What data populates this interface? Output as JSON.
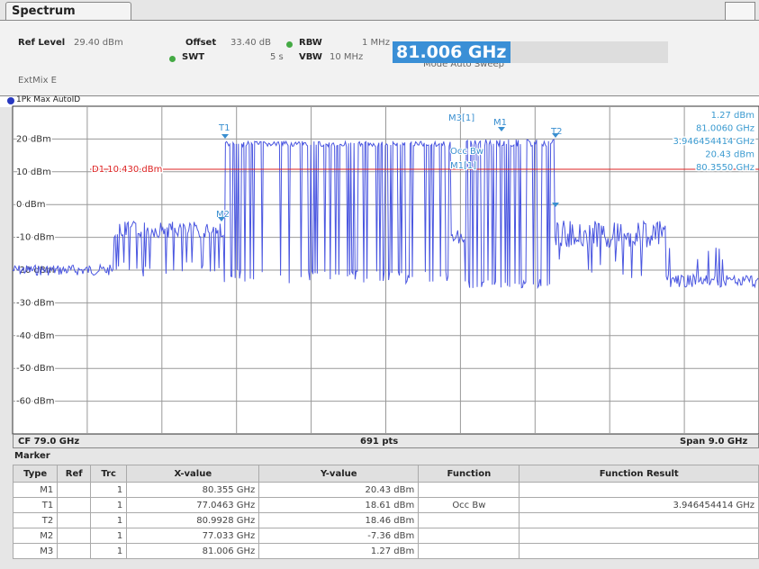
{
  "tab": "Spectrum",
  "header": {
    "ref_level_label": "Ref Level",
    "ref_level": "29.40 dBm",
    "offset_label": "Offset",
    "offset": "33.40 dB",
    "rbw_label": "RBW",
    "rbw": "1 MHz",
    "swt_label": "SWT",
    "swt": "5 s",
    "vbw_label": "VBW",
    "vbw": "10 MHz",
    "mode": "Mode Auto Sweep",
    "extmix": "ExtMix E",
    "frequency_entry": "81.006 GHz"
  },
  "trace_label": "1Pk Max AutoID",
  "y_axis_labels": [
    "20 dBm",
    "10 dBm",
    "0 dBm",
    "-10 dBm",
    "-20 dBm",
    "-30 dBm",
    "-40 dBm",
    "-50 dBm",
    "-60 dBm"
  ],
  "display_line": "D1 10.430 dBm",
  "markers": [
    "T1",
    "M2",
    "M3[1]",
    "M1",
    "T2",
    "Occ Bw",
    "M1[1]"
  ],
  "readout": [
    "1.27 dBm",
    "81.0060 GHz",
    "3.946454414 GHz",
    "20.43 dBm",
    "80.3550 GHz"
  ],
  "footer": {
    "center": "CF 79.0 GHz",
    "points": "691 pts",
    "span": "Span 9.0 GHz"
  },
  "marker_table": {
    "title": "Marker",
    "columns": [
      "Type",
      "Ref",
      "Trc",
      "X-value",
      "Y-value",
      "Function",
      "Function Result"
    ],
    "rows": [
      [
        "M1",
        "",
        "1",
        "80.355 GHz",
        "20.43 dBm",
        "",
        ""
      ],
      [
        "T1",
        "",
        "1",
        "77.0463 GHz",
        "18.61 dBm",
        "Occ Bw",
        "3.946454414 GHz"
      ],
      [
        "T2",
        "",
        "1",
        "80.9928 GHz",
        "18.46 dBm",
        "",
        ""
      ],
      [
        "M2",
        "",
        "1",
        "77.033 GHz",
        "-7.36 dBm",
        "",
        ""
      ],
      [
        "M3",
        "",
        "1",
        "81.006 GHz",
        "1.27 dBm",
        "",
        ""
      ]
    ]
  }
}
